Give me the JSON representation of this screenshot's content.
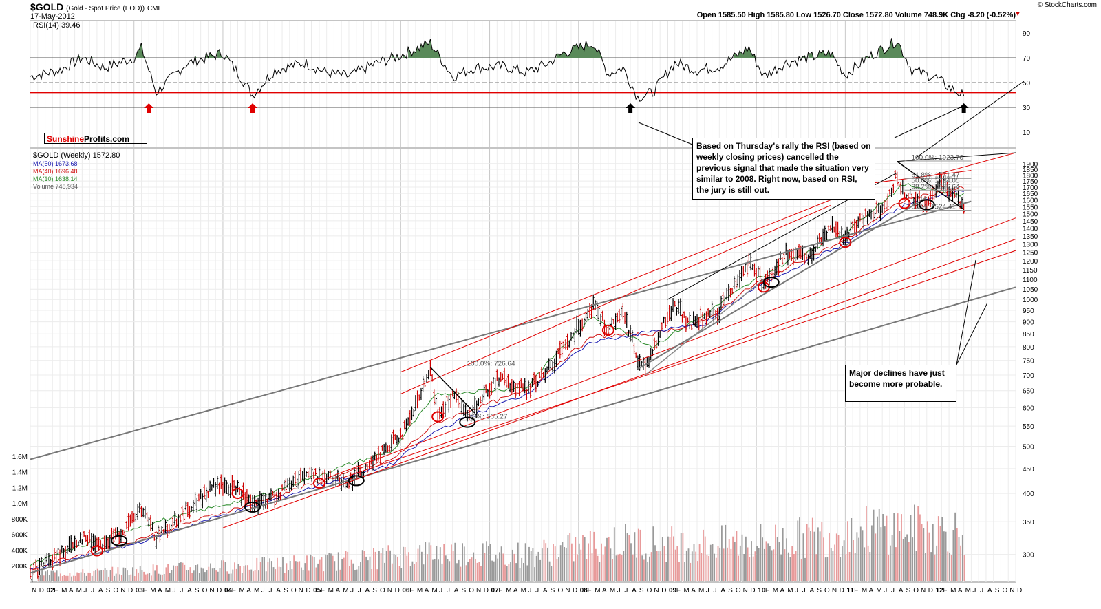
{
  "header": {
    "symbol": "$GOLD",
    "description": "(Gold - Spot Price (EOD))",
    "exchange": "CME",
    "date": "17-May-2012",
    "copyright": "© StockCharts.com",
    "ohlc": "Open 1585.50  High 1585.80  Low 1526.70  Close 1572.80  Volume 748.9K  Chg -8.20 (-0.52%)",
    "chg_arrow": "▼"
  },
  "legend": {
    "rsi": "RSI(14) 39.46",
    "price": "$GOLD (Weekly) 1572.80",
    "ma50": "MA(50) 1673.68",
    "ma40": "MA(40) 1696.48",
    "ma10": "MA(10) 1638.14",
    "volume": "Volume 748,934"
  },
  "watermark": {
    "part1": "Sunshine",
    "part2": "Profits.com"
  },
  "annotations": {
    "rsi_note": "Based on Thursday's rally the RSI (based on weekly closing prices) cancelled the previous signal that made the situation very similar to 2008. Right now, based on RSI, the jury is still out.",
    "decline_note": "Major declines have just become more probable."
  },
  "colors": {
    "price_up": "#000000",
    "price_down": "#cc0000",
    "ma50": "#1a1ab0",
    "ma40": "#d01010",
    "ma10": "#2a8a2a",
    "volume_up": "#9a9a9a",
    "volume_down": "#e89a9a",
    "support_line": "#e00000",
    "channel_line": "#777777",
    "rsi_fill": "#5a8a5a"
  },
  "chart_data": [
    {
      "type": "line",
      "title": "RSI(14)",
      "ylim": [
        0,
        100
      ],
      "y_ticks": [
        10,
        30,
        50,
        70,
        90
      ],
      "reference_lines": [
        30,
        42,
        50,
        70
      ],
      "last_value": 39.46,
      "signal_arrows": [
        {
          "date": "2003-03",
          "color": "red",
          "direction": "up"
        },
        {
          "date": "2004-05",
          "color": "red",
          "direction": "up"
        },
        {
          "date": "2008-08",
          "color": "black",
          "direction": "up"
        },
        {
          "date": "2012-05",
          "color": "black",
          "direction": "up"
        }
      ],
      "series": [
        {
          "name": "RSI(14)",
          "x": [
            "2001-11",
            "2002-03",
            "2002-06",
            "2002-09",
            "2003-01",
            "2003-02",
            "2003-04",
            "2003-08",
            "2004-01",
            "2004-03",
            "2004-05",
            "2004-08",
            "2004-12",
            "2005-03",
            "2005-06",
            "2005-09",
            "2006-01",
            "2006-05",
            "2006-08",
            "2006-11",
            "2007-03",
            "2007-06",
            "2007-09",
            "2007-11",
            "2008-03",
            "2008-05",
            "2008-07",
            "2008-09",
            "2008-11",
            "2009-02",
            "2009-05",
            "2009-08",
            "2009-12",
            "2010-02",
            "2010-05",
            "2010-08",
            "2010-11",
            "2011-01",
            "2011-04",
            "2011-08",
            "2011-10",
            "2012-01",
            "2012-03",
            "2012-05"
          ],
          "y": [
            55,
            60,
            70,
            62,
            70,
            78,
            42,
            65,
            74,
            58,
            40,
            60,
            66,
            58,
            55,
            64,
            72,
            82,
            55,
            62,
            63,
            58,
            66,
            74,
            82,
            57,
            62,
            38,
            42,
            66,
            60,
            63,
            78,
            55,
            66,
            70,
            74,
            56,
            70,
            84,
            60,
            55,
            46,
            39.46
          ]
        }
      ]
    },
    {
      "type": "line",
      "title": "$GOLD (Weekly)",
      "scale": "log",
      "ylim": [
        270,
        2000
      ],
      "y_ticks": [
        300,
        350,
        400,
        450,
        500,
        550,
        600,
        650,
        700,
        750,
        800,
        850,
        900,
        950,
        1000,
        1050,
        1100,
        1150,
        1200,
        1250,
        1300,
        1350,
        1400,
        1450,
        1500,
        1550,
        1600,
        1650,
        1700,
        1750,
        1800,
        1850,
        1900
      ],
      "x_ticks": [
        "N",
        "D",
        "02",
        "F",
        "M",
        "A",
        "M",
        "J",
        "J",
        "A",
        "S",
        "O",
        "N",
        "D",
        "03",
        "F",
        "M",
        "A",
        "M",
        "J",
        "J",
        "A",
        "S",
        "O",
        "N",
        "D",
        "04",
        "F",
        "M",
        "A",
        "M",
        "J",
        "J",
        "A",
        "S",
        "O",
        "N",
        "D",
        "05",
        "F",
        "M",
        "A",
        "M",
        "J",
        "J",
        "A",
        "S",
        "O",
        "N",
        "D",
        "06",
        "F",
        "M",
        "A",
        "M",
        "J",
        "J",
        "A",
        "S",
        "O",
        "N",
        "D",
        "07",
        "F",
        "M",
        "A",
        "M",
        "J",
        "J",
        "A",
        "S",
        "O",
        "N",
        "D",
        "08",
        "F",
        "M",
        "A",
        "M",
        "J",
        "J",
        "A",
        "S",
        "O",
        "N",
        "D",
        "09",
        "F",
        "M",
        "A",
        "M",
        "J",
        "J",
        "A",
        "S",
        "O",
        "N",
        "D",
        "10",
        "F",
        "M",
        "A",
        "M",
        "J",
        "J",
        "A",
        "S",
        "O",
        "N",
        "D",
        "11",
        "F",
        "M",
        "A",
        "M",
        "J",
        "J",
        "A",
        "S",
        "O",
        "N",
        "D",
        "12",
        "F",
        "M",
        "A",
        "M",
        "J",
        "J",
        "A",
        "S",
        "O",
        "N",
        "D"
      ],
      "x_range": [
        "2001-11",
        "2012-12"
      ],
      "last_close": 1572.8,
      "fibonacci": [
        {
          "label": "100.0%: 726.64",
          "value": 726.64
        },
        {
          "label": "0.0%: 565.27",
          "value": 565.27
        },
        {
          "label": "100.0%: 1923.70",
          "value": 1923.7
        },
        {
          "label": "61.8%: 1771.47",
          "value": 1771.47
        },
        {
          "label": "50.0%: 1724.05",
          "value": 1724.05
        },
        {
          "label": "38.2%: 1676.64",
          "value": 1676.64
        },
        {
          "label": "0.0%: 1524.41",
          "value": 1524.41
        }
      ],
      "series": [
        {
          "name": "$GOLD",
          "x": [
            "2001-11",
            "2002-03",
            "2002-06",
            "2002-09",
            "2002-12",
            "2003-02",
            "2003-04",
            "2003-09",
            "2003-12",
            "2004-03",
            "2004-05",
            "2004-08",
            "2004-12",
            "2005-03",
            "2005-06",
            "2005-09",
            "2005-12",
            "2006-02",
            "2006-05",
            "2006-06",
            "2006-08",
            "2006-10",
            "2007-02",
            "2007-06",
            "2007-09",
            "2007-11",
            "2008-01",
            "2008-03",
            "2008-05",
            "2008-07",
            "2008-09",
            "2008-10",
            "2008-12",
            "2009-02",
            "2009-04",
            "2009-08",
            "2009-12",
            "2010-02",
            "2010-05",
            "2010-08",
            "2010-11",
            "2011-01",
            "2011-04",
            "2011-06",
            "2011-08",
            "2011-09",
            "2011-12",
            "2012-02",
            "2012-03",
            "2012-05"
          ],
          "y": [
            275,
            300,
            325,
            315,
            340,
            370,
            325,
            380,
            415,
            410,
            375,
            395,
            440,
            430,
            425,
            460,
            510,
            550,
            710,
            580,
            640,
            570,
            690,
            650,
            720,
            800,
            880,
            980,
            860,
            940,
            760,
            720,
            860,
            980,
            890,
            950,
            1200,
            1080,
            1240,
            1220,
            1420,
            1340,
            1500,
            1520,
            1800,
            1650,
            1560,
            1780,
            1660,
            1572.8
          ]
        },
        {
          "name": "MA(10)",
          "x": [
            "2001-11",
            "2003-01",
            "2004-06",
            "2005-12",
            "2006-06",
            "2007-06",
            "2008-03",
            "2008-11",
            "2009-06",
            "2010-01",
            "2011-01",
            "2011-09",
            "2012-05"
          ],
          "y": [
            285,
            340,
            395,
            490,
            640,
            660,
            920,
            800,
            930,
            1100,
            1370,
            1720,
            1638.14
          ]
        },
        {
          "name": "MA(40)",
          "x": [
            "2001-11",
            "2003-01",
            "2004-06",
            "2005-12",
            "2006-06",
            "2007-06",
            "2008-03",
            "2008-11",
            "2009-06",
            "2010-01",
            "2011-01",
            "2011-09",
            "2012-05"
          ],
          "y": [
            280,
            320,
            385,
            470,
            560,
            650,
            840,
            850,
            900,
            1080,
            1320,
            1600,
            1696.48
          ]
        },
        {
          "name": "MA(50)",
          "x": [
            "2001-11",
            "2003-01",
            "2004-06",
            "2005-12",
            "2006-06",
            "2007-06",
            "2008-03",
            "2008-11",
            "2009-06",
            "2010-01",
            "2011-01",
            "2011-09",
            "2012-05"
          ],
          "y": [
            278,
            315,
            380,
            460,
            540,
            640,
            820,
            860,
            890,
            1060,
            1300,
            1560,
            1673.68
          ]
        }
      ]
    },
    {
      "type": "bar",
      "title": "Volume",
      "ylim": [
        0,
        1800000
      ],
      "y_ticks": [
        "200K",
        "400K",
        "600K",
        "800K",
        "1.0M",
        "1.2M",
        "1.4M",
        "1.6M"
      ],
      "last_value": 748934,
      "series": [
        {
          "name": "Volume",
          "x": [
            "2002",
            "2003",
            "2004",
            "2005",
            "2006",
            "2007",
            "2008",
            "2009",
            "2010",
            "2011",
            "2012"
          ],
          "y": [
            120000,
            180000,
            230000,
            300000,
            420000,
            380000,
            560000,
            520000,
            600000,
            760000,
            700000
          ]
        }
      ]
    }
  ]
}
